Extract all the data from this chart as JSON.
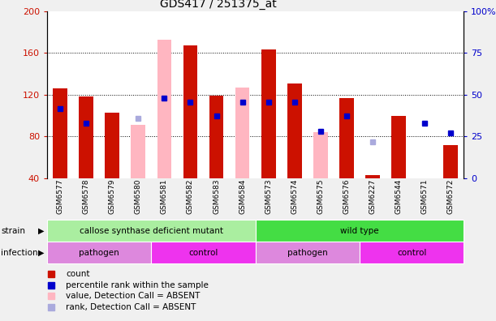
{
  "title": "GDS417 / 251375_at",
  "samples": [
    "GSM6577",
    "GSM6578",
    "GSM6579",
    "GSM6580",
    "GSM6581",
    "GSM6582",
    "GSM6583",
    "GSM6584",
    "GSM6573",
    "GSM6574",
    "GSM6575",
    "GSM6576",
    "GSM6227",
    "GSM6544",
    "GSM6571",
    "GSM6572"
  ],
  "red_bars": [
    126,
    118,
    103,
    0,
    0,
    167,
    119,
    0,
    163,
    131,
    0,
    117,
    43,
    100,
    0,
    72
  ],
  "pink_bars": [
    0,
    0,
    0,
    91,
    173,
    0,
    0,
    127,
    0,
    0,
    84,
    0,
    0,
    0,
    0,
    0
  ],
  "blue_squares_left": [
    107,
    93,
    0,
    0,
    117,
    113,
    100,
    113,
    113,
    113,
    85,
    100,
    0,
    0,
    93,
    83
  ],
  "lightblue_squares_left": [
    0,
    0,
    0,
    97,
    0,
    0,
    0,
    0,
    0,
    0,
    0,
    0,
    75,
    0,
    0,
    0
  ],
  "ylim_left": [
    40,
    200
  ],
  "ylim_right": [
    0,
    100
  ],
  "yticks_left": [
    40,
    80,
    120,
    160,
    200
  ],
  "yticks_right": [
    0,
    25,
    50,
    75,
    100
  ],
  "ytick_labels_right": [
    "0",
    "25",
    "50",
    "75",
    "100%"
  ],
  "strain_groups": [
    {
      "text": "callose synthase deficient mutant",
      "start": 0,
      "end": 8,
      "color": "#AAEEA0"
    },
    {
      "text": "wild type",
      "start": 8,
      "end": 16,
      "color": "#44DD44"
    }
  ],
  "infection_groups": [
    {
      "text": "pathogen",
      "start": 0,
      "end": 4,
      "color": "#DD88DD"
    },
    {
      "text": "control",
      "start": 4,
      "end": 8,
      "color": "#EE33EE"
    },
    {
      "text": "pathogen",
      "start": 8,
      "end": 12,
      "color": "#DD88DD"
    },
    {
      "text": "control",
      "start": 12,
      "end": 16,
      "color": "#EE33EE"
    }
  ],
  "legend_items": [
    {
      "label": "count",
      "color": "#CC1100"
    },
    {
      "label": "percentile rank within the sample",
      "color": "#0000CC"
    },
    {
      "label": "value, Detection Call = ABSENT",
      "color": "#FFB6C1"
    },
    {
      "label": "rank, Detection Call = ABSENT",
      "color": "#AAAADD"
    }
  ],
  "bar_width": 0.55,
  "red_color": "#CC1100",
  "pink_color": "#FFB6C1",
  "blue_color": "#0000CC",
  "lightblue_color": "#AAAADD",
  "bg_color": "#F0F0F0",
  "plot_bg": "#FFFFFF"
}
